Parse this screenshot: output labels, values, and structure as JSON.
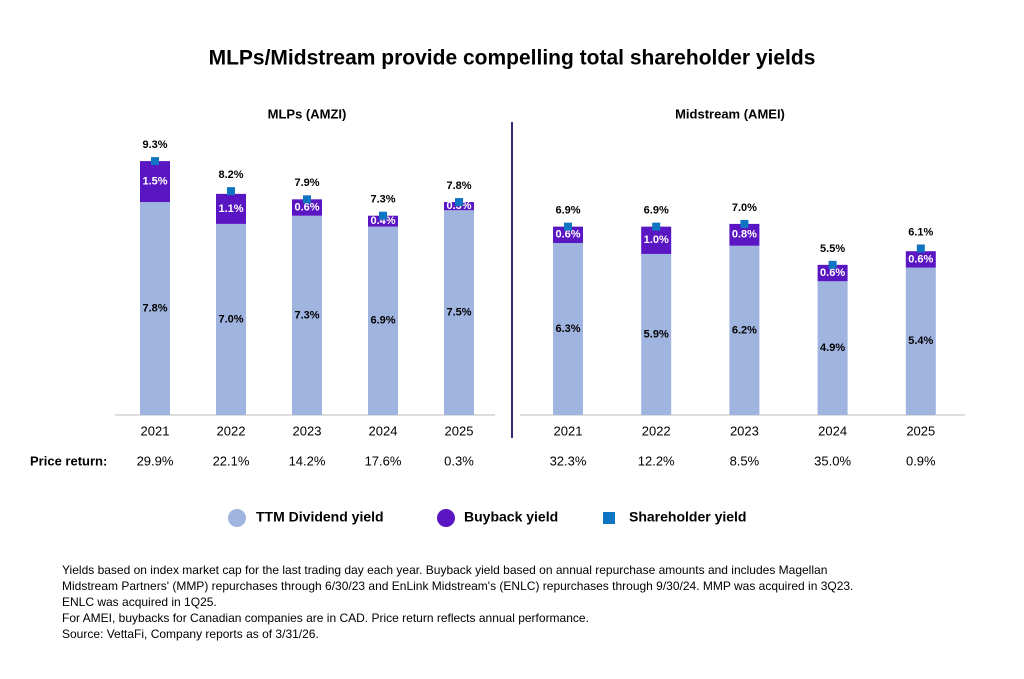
{
  "title": "MLPs/Midstream provide compelling total shareholder yields",
  "price_return_label": "Price return:",
  "notes": [
    "Yields based on index market cap for the last trading day each year. Buyback yield based on annual repurchase amounts and includes Magellan",
    "Midstream Partners' (MMP) repurchases through 6/30/23 and EnLink Midstream's (ENLC) repurchases through 9/30/24. MMP was acquired in 3Q23.",
    "ENLC was acquired in 1Q25.",
    "For AMEI, buybacks for Canadian companies are in CAD. Price return reflects annual performance.",
    "Source: VettaFi, Company reports as of 3/31/26."
  ],
  "chart_data": [
    {
      "type": "bar",
      "stacked": true,
      "title": "MLPs (AMZI)",
      "categories": [
        "2021",
        "2022",
        "2023",
        "2024",
        "2025"
      ],
      "series": [
        {
          "name": "TTM Dividend yield",
          "color": "#9fb4df",
          "values": [
            7.8,
            7.0,
            7.3,
            6.9,
            7.5
          ],
          "value_labels": [
            "7.8%",
            "7.0%",
            "7.3%",
            "6.9%",
            "7.5%"
          ]
        },
        {
          "name": "Buyback yield",
          "color": "#5a16c2",
          "values": [
            1.5,
            1.1,
            0.6,
            0.4,
            0.3
          ],
          "value_labels": [
            "1.5%",
            "1.1%",
            "0.6%",
            "0.4%",
            "0.3%"
          ]
        },
        {
          "name": "Shareholder yield",
          "color": "#0f74c2",
          "style": "marker",
          "values": [
            9.3,
            8.2,
            7.9,
            7.3,
            7.8
          ],
          "value_labels": [
            "9.3%",
            "8.2%",
            "7.9%",
            "7.3%",
            "7.8%"
          ]
        }
      ],
      "price_return": [
        "29.9%",
        "22.1%",
        "14.2%",
        "17.6%",
        "0.3%"
      ]
    },
    {
      "type": "bar",
      "stacked": true,
      "title": "Midstream (AMEI)",
      "categories": [
        "2021",
        "2022",
        "2023",
        "2024",
        "2025"
      ],
      "series": [
        {
          "name": "TTM Dividend yield",
          "color": "#9fb4df",
          "values": [
            6.3,
            5.9,
            6.2,
            4.9,
            5.4
          ],
          "value_labels": [
            "6.3%",
            "5.9%",
            "6.2%",
            "4.9%",
            "5.4%"
          ]
        },
        {
          "name": "Buyback yield",
          "color": "#5a16c2",
          "values": [
            0.6,
            1.0,
            0.8,
            0.6,
            0.6
          ],
          "value_labels": [
            "0.6%",
            "1.0%",
            "0.8%",
            "0.6%",
            "0.6%"
          ]
        },
        {
          "name": "Shareholder yield",
          "color": "#0f74c2",
          "style": "marker",
          "values": [
            6.9,
            6.9,
            7.0,
            5.5,
            6.1
          ],
          "value_labels": [
            "6.9%",
            "6.9%",
            "7.0%",
            "5.5%",
            "6.1%"
          ]
        }
      ],
      "price_return": [
        "32.3%",
        "12.2%",
        "8.5%",
        "35.0%",
        "0.9%"
      ]
    }
  ]
}
